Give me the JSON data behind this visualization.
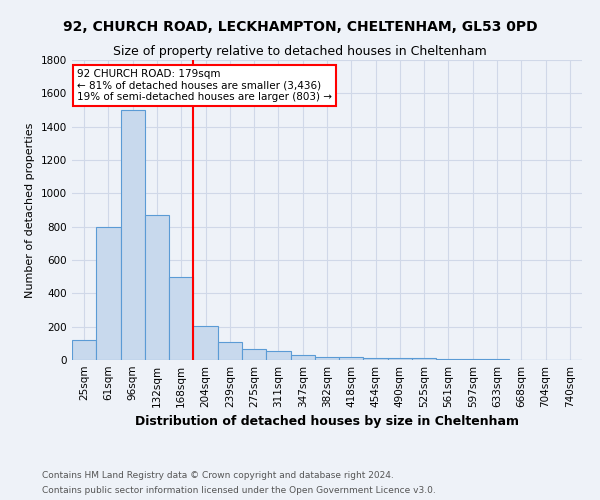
{
  "title1": "92, CHURCH ROAD, LECKHAMPTON, CHELTENHAM, GL53 0PD",
  "title2": "Size of property relative to detached houses in Cheltenham",
  "xlabel": "Distribution of detached houses by size in Cheltenham",
  "ylabel": "Number of detached properties",
  "categories": [
    "25sqm",
    "61sqm",
    "96sqm",
    "132sqm",
    "168sqm",
    "204sqm",
    "239sqm",
    "275sqm",
    "311sqm",
    "347sqm",
    "382sqm",
    "418sqm",
    "454sqm",
    "490sqm",
    "525sqm",
    "561sqm",
    "597sqm",
    "633sqm",
    "668sqm",
    "704sqm",
    "740sqm"
  ],
  "values": [
    120,
    800,
    1500,
    870,
    500,
    205,
    110,
    65,
    55,
    30,
    20,
    20,
    15,
    10,
    10,
    8,
    8,
    5,
    3,
    2,
    2
  ],
  "bar_color": "#c8d9ed",
  "bar_edge_color": "#5b9bd5",
  "redline_x": 4.5,
  "annotation_line1": "92 CHURCH ROAD: 179sqm",
  "annotation_line2": "← 81% of detached houses are smaller (3,436)",
  "annotation_line3": "19% of semi-detached houses are larger (803) →",
  "annotation_box_color": "white",
  "annotation_border_color": "red",
  "redline_color": "red",
  "footnote1": "Contains HM Land Registry data © Crown copyright and database right 2024.",
  "footnote2": "Contains public sector information licensed under the Open Government Licence v3.0.",
  "ylim": [
    0,
    1800
  ],
  "title1_fontsize": 10,
  "title2_fontsize": 9,
  "xlabel_fontsize": 9,
  "ylabel_fontsize": 8,
  "tick_fontsize": 7.5,
  "annotation_fontsize": 7.5,
  "footnote_fontsize": 6.5,
  "bg_color": "#eef2f8",
  "grid_color": "#d0d8e8"
}
